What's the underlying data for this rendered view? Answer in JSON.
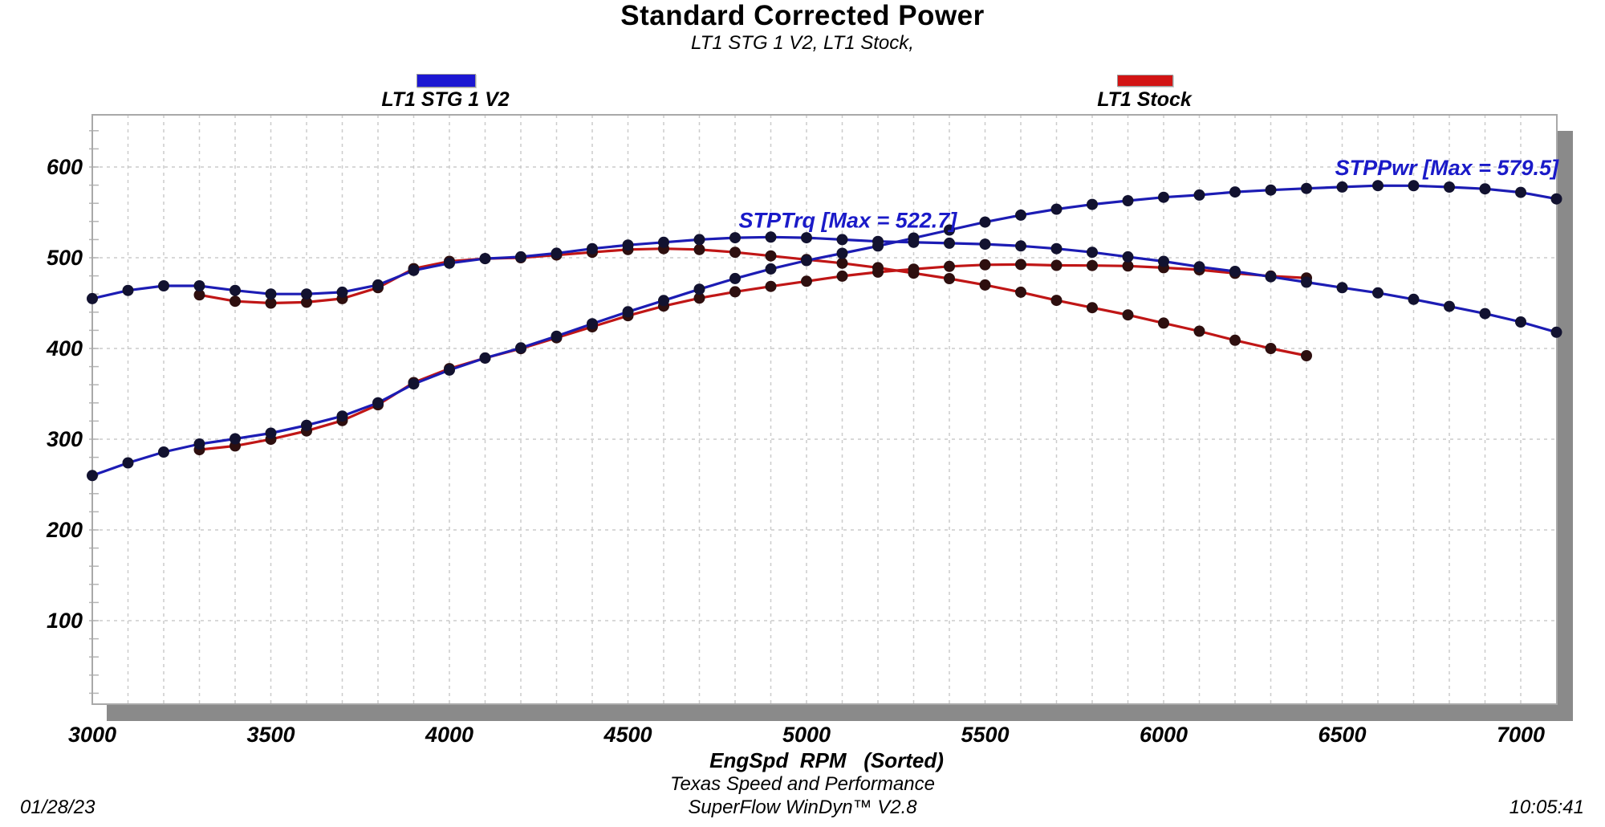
{
  "header": {
    "title": "Standard Corrected Power",
    "subtitle": "LT1 STG 1 V2, LT1 Stock,"
  },
  "legend": [
    {
      "label": "LT1 STG 1 V2",
      "color": "#1c17d2"
    },
    {
      "label": "LT1 Stock",
      "color": "#d21414"
    }
  ],
  "footer": {
    "facility": "Texas Speed and Performance",
    "software": "SuperFlow WinDyn™ V2.8",
    "date": "01/28/23",
    "time": "10:05:41"
  },
  "chart_data": {
    "type": "line",
    "title": "Standard Corrected Power",
    "subtitle": "LT1 STG 1 V2, LT1 Stock,",
    "xlabel": "EngSpd  RPM   (Sorted)",
    "ylabel": "",
    "xlim": [
      3000,
      7100
    ],
    "ylim": [
      0,
      650
    ],
    "x_ticks": [
      3000,
      3500,
      4000,
      4500,
      5000,
      5500,
      6000,
      6500,
      7000
    ],
    "y_ticks": [
      100,
      200,
      300,
      400,
      500,
      600
    ],
    "grid": true,
    "legend_position": "top",
    "colors": {
      "grid": "#cccccc",
      "border": "#a9a9a9",
      "shadow": "#8a8a8a",
      "minor_tick": "#b5b5b5"
    },
    "annotations": [
      {
        "text": "STPTrq [Max = 522.7]",
        "rpm": 4810,
        "value": 533,
        "color": "#1a1ac8"
      },
      {
        "text": "STPPwr [Max = 579.5]",
        "rpm": 6480,
        "value": 591,
        "color": "#1a1ac8"
      }
    ],
    "series": [
      {
        "name": "LT1 Stock STPTrq",
        "color": "#c01616",
        "marker_color": "#2e0f0f",
        "x": [
          3300,
          3400,
          3500,
          3600,
          3700,
          3800,
          3900,
          4000,
          4100,
          4200,
          4300,
          4400,
          4500,
          4600,
          4700,
          4800,
          4900,
          5000,
          5100,
          5200,
          5300,
          5400,
          5500,
          5600,
          5700,
          5800,
          5900,
          6000,
          6100,
          6200,
          6300,
          6400
        ],
        "values": [
          459,
          452,
          450,
          451,
          455,
          467,
          488,
          496,
          499,
          500,
          503,
          506,
          509,
          510,
          509,
          506,
          502,
          498,
          494,
          489,
          483,
          477,
          470,
          462,
          453,
          445,
          437,
          428,
          419,
          409,
          400,
          392
        ]
      },
      {
        "name": "LT1 Stock STPPwr",
        "color": "#c01616",
        "marker_color": "#2e0f0f",
        "x": [
          3300,
          3400,
          3500,
          3600,
          3700,
          3800,
          3900,
          4000,
          4100,
          4200,
          4300,
          4400,
          4500,
          4600,
          4700,
          4800,
          4900,
          5000,
          5100,
          5200,
          5300,
          5400,
          5500,
          5600,
          5700,
          5800,
          5900,
          6000,
          6100,
          6200,
          6300,
          6400
        ],
        "values": [
          288.4,
          292.6,
          299.9,
          309.1,
          320.5,
          337.9,
          362.4,
          377.8,
          389.5,
          399.8,
          411.8,
          423.9,
          436.1,
          446.7,
          455.5,
          462.5,
          468.4,
          474.1,
          479.7,
          484.2,
          487.4,
          490.4,
          492.2,
          492.6,
          491.6,
          491.4,
          490.9,
          489.0,
          486.7,
          482.8,
          479.8,
          477.7
        ]
      },
      {
        "name": "LT1 STG 1 V2 STPPwr",
        "color": "#1c1cb4",
        "marker_color": "#121230",
        "x": [
          3000,
          3100,
          3200,
          3300,
          3400,
          3500,
          3600,
          3700,
          3800,
          3900,
          4000,
          4100,
          4200,
          4300,
          4400,
          4500,
          4600,
          4700,
          4800,
          4900,
          5000,
          5100,
          5200,
          5300,
          5400,
          5500,
          5600,
          5700,
          5800,
          5900,
          6000,
          6100,
          6200,
          6300,
          6400,
          6500,
          6600,
          6700,
          6800,
          6900,
          7000,
          7100
        ],
        "values": [
          259.9,
          273.9,
          285.8,
          294.7,
          300.4,
          306.6,
          315.3,
          325.5,
          340.1,
          360.9,
          376.2,
          389.5,
          400.6,
          413.5,
          427.3,
          440.4,
          452.8,
          465.3,
          477.1,
          487.7,
          496.9,
          504.9,
          512.9,
          521.7,
          530.5,
          539.3,
          547.0,
          553.5,
          558.8,
          562.8,
          566.6,
          569.1,
          572.5,
          574.6,
          576.4,
          578.0,
          579.5,
          579.4,
          577.9,
          575.9,
          572.0,
          564.9
        ]
      },
      {
        "name": "LT1 STG 1 V2 STPTrq",
        "color": "#1c1cb4",
        "marker_color": "#121230",
        "x": [
          3000,
          3100,
          3200,
          3300,
          3400,
          3500,
          3600,
          3700,
          3800,
          3900,
          4000,
          4100,
          4200,
          4300,
          4400,
          4500,
          4600,
          4700,
          4800,
          4900,
          5000,
          5100,
          5200,
          5300,
          5400,
          5500,
          5600,
          5700,
          5800,
          5900,
          6000,
          6100,
          6200,
          6300,
          6400,
          6500,
          6600,
          6700,
          6800,
          6900,
          7000,
          7100
        ],
        "values": [
          455,
          464,
          469,
          469,
          464,
          460,
          460,
          462,
          470,
          486,
          494,
          499,
          501,
          505,
          510,
          514,
          517,
          520,
          522,
          522.7,
          522,
          520,
          518,
          517,
          516,
          515,
          513,
          510,
          506,
          501,
          496,
          490,
          485,
          479,
          473,
          467,
          461.2,
          454.2,
          446.4,
          438.4,
          429.2,
          417.9
        ]
      }
    ]
  }
}
